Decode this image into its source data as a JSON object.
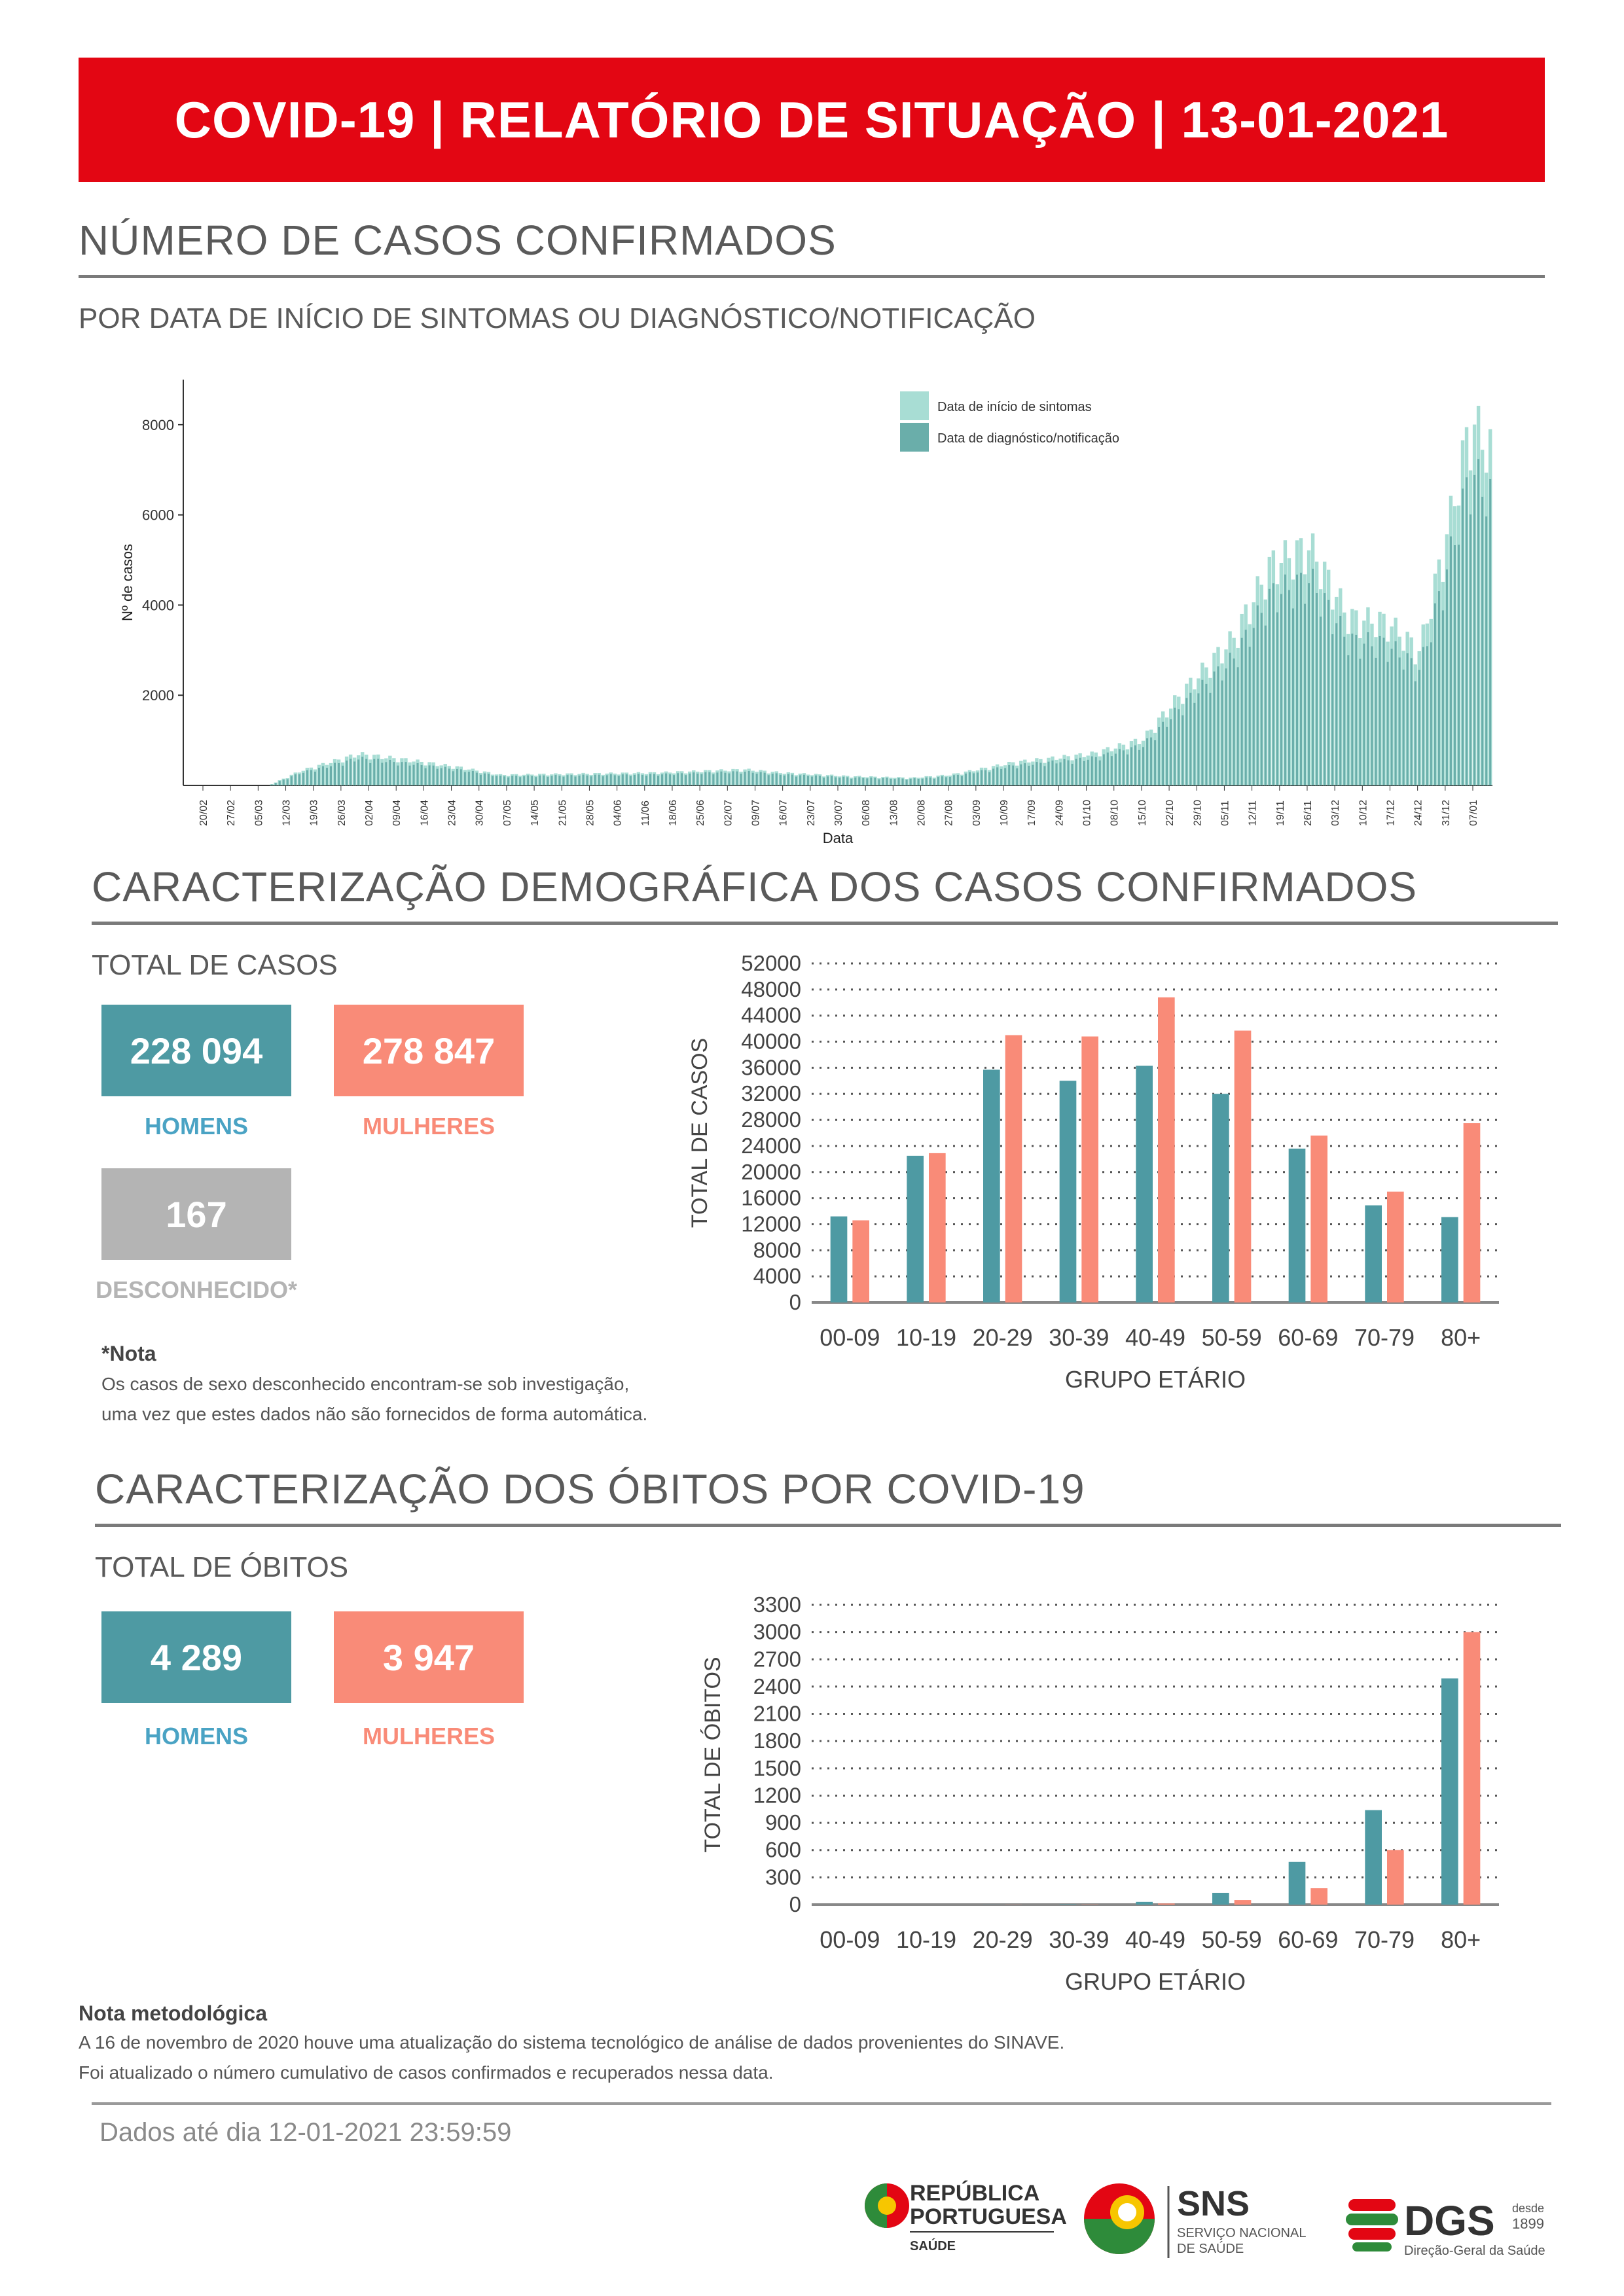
{
  "banner": {
    "title": "COVID-19 | RELATÓRIO DE SITUAÇÃO | 13-01-2021"
  },
  "section_cases": {
    "title": "NÚMERO DE CASOS CONFIRMADOS",
    "subtitle": "POR DATA DE INÍCIO DE SINTOMAS OU DIAGNÓSTICO/NOTIFICAÇÃO"
  },
  "timeseries": {
    "ylabel": "Nº de casos",
    "xlabel": "Data",
    "yticks": [
      2000,
      4000,
      6000,
      8000
    ],
    "legend": [
      "Data de início de sintomas",
      "Data de diagnóstico/notificação"
    ],
    "xticks": [
      "20/02",
      "27/02",
      "05/03",
      "12/03",
      "19/03",
      "26/03",
      "02/04",
      "09/04",
      "16/04",
      "23/04",
      "30/04",
      "07/05",
      "14/05",
      "21/05",
      "28/05",
      "04/06",
      "11/06",
      "18/06",
      "25/06",
      "02/07",
      "09/07",
      "16/07",
      "23/07",
      "30/07",
      "06/08",
      "13/08",
      "20/08",
      "27/08",
      "03/09",
      "10/09",
      "17/09",
      "24/09",
      "01/10",
      "08/10",
      "15/10",
      "22/10",
      "29/10",
      "05/11",
      "12/11",
      "19/11",
      "26/11",
      "03/12",
      "10/12",
      "17/12",
      "24/12",
      "31/12",
      "07/01"
    ]
  },
  "section_demo": {
    "title": "CARACTERIZAÇÃO DEMOGRÁFICA DOS CASOS CONFIRMADOS",
    "subtitle": "TOTAL DE CASOS"
  },
  "cases_totals": {
    "men_value": "228 094",
    "men_label": "HOMENS",
    "women_value": "278 847",
    "women_label": "MULHERES",
    "unknown_value": "167",
    "unknown_label": "DESCONHECIDO*"
  },
  "cases_note": {
    "title": "*Nota",
    "line1": "Os casos de sexo desconhecido encontram-se sob investigação,",
    "line2": "uma vez que estes dados não são fornecidos de forma automática."
  },
  "section_deaths": {
    "title": "CARACTERIZAÇÃO DOS ÓBITOS POR COVID-19",
    "subtitle": "TOTAL DE ÓBITOS"
  },
  "deaths_totals": {
    "men_value": "4 289",
    "men_label": "HOMENS",
    "women_value": "3 947",
    "women_label": "MULHERES"
  },
  "method_note": {
    "title": "Nota metodológica",
    "line1": "A 16 de novembro de 2020 houve uma atualização do sistema tecnológico de análise de dados provenientes do SINAVE.",
    "line2": "Foi atualizado o número cumulativo de casos confirmados e recuperados nessa data."
  },
  "footer": {
    "date": "Dados até dia 12-01-2021 23:59:59"
  },
  "logos": {
    "rp_line1": "REPÚBLICA",
    "rp_line2": "PORTUGUESA",
    "rp_line3": "SAÚDE",
    "sns_title": "SNS",
    "sns_line1": "SERVIÇO NACIONAL",
    "sns_line2": "DE SAÚDE",
    "dgs_title": "DGS",
    "dgs_since1": "desde",
    "dgs_since2": "1899",
    "dgs_sub": "Direção-Geral da Saúde"
  },
  "colors": {
    "teal": "#4e9aa3",
    "salmon": "#f98b78",
    "red": "#e30613",
    "grey": "#b4b4b4",
    "ts_light": "#a8ddd4",
    "ts_dark": "#6aaeaa"
  },
  "chart_data": [
    {
      "type": "bar",
      "title": "",
      "categories": [
        "00-09",
        "10-19",
        "20-29",
        "30-39",
        "40-49",
        "50-59",
        "60-69",
        "70-79",
        "80+"
      ],
      "series": [
        {
          "values": [
            13200,
            22500,
            35700,
            34000,
            36300,
            32000,
            23600,
            14900,
            13100
          ]
        },
        {
          "values": [
            12600,
            22900,
            41000,
            40800,
            46800,
            41700,
            25600,
            17000,
            27500
          ]
        }
      ],
      "xlabel": "GRUPO ETÁRIO",
      "ylabel": "TOTAL DE CASOS",
      "ylim": [
        0,
        52000
      ],
      "yticks": [
        0,
        4000,
        8000,
        12000,
        16000,
        20000,
        24000,
        28000,
        32000,
        36000,
        40000,
        44000,
        48000,
        52000
      ],
      "grid": true
    },
    {
      "type": "bar",
      "title": "",
      "categories": [
        "00-09",
        "10-19",
        "20-29",
        "30-39",
        "40-49",
        "50-59",
        "60-69",
        "70-79",
        "80+"
      ],
      "series": [
        {
          "values": [
            0,
            0,
            1,
            4,
            30,
            130,
            470,
            1040,
            2490
          ]
        },
        {
          "values": [
            0,
            0,
            1,
            2,
            12,
            50,
            180,
            600,
            3000
          ]
        }
      ],
      "xlabel": "GRUPO ETÁRIO",
      "ylabel": "TOTAL DE ÓBITOS",
      "ylim": [
        0,
        3300
      ],
      "yticks": [
        0,
        300,
        600,
        900,
        1200,
        1500,
        1800,
        2100,
        2400,
        2700,
        3000,
        3300
      ],
      "grid": true
    }
  ]
}
